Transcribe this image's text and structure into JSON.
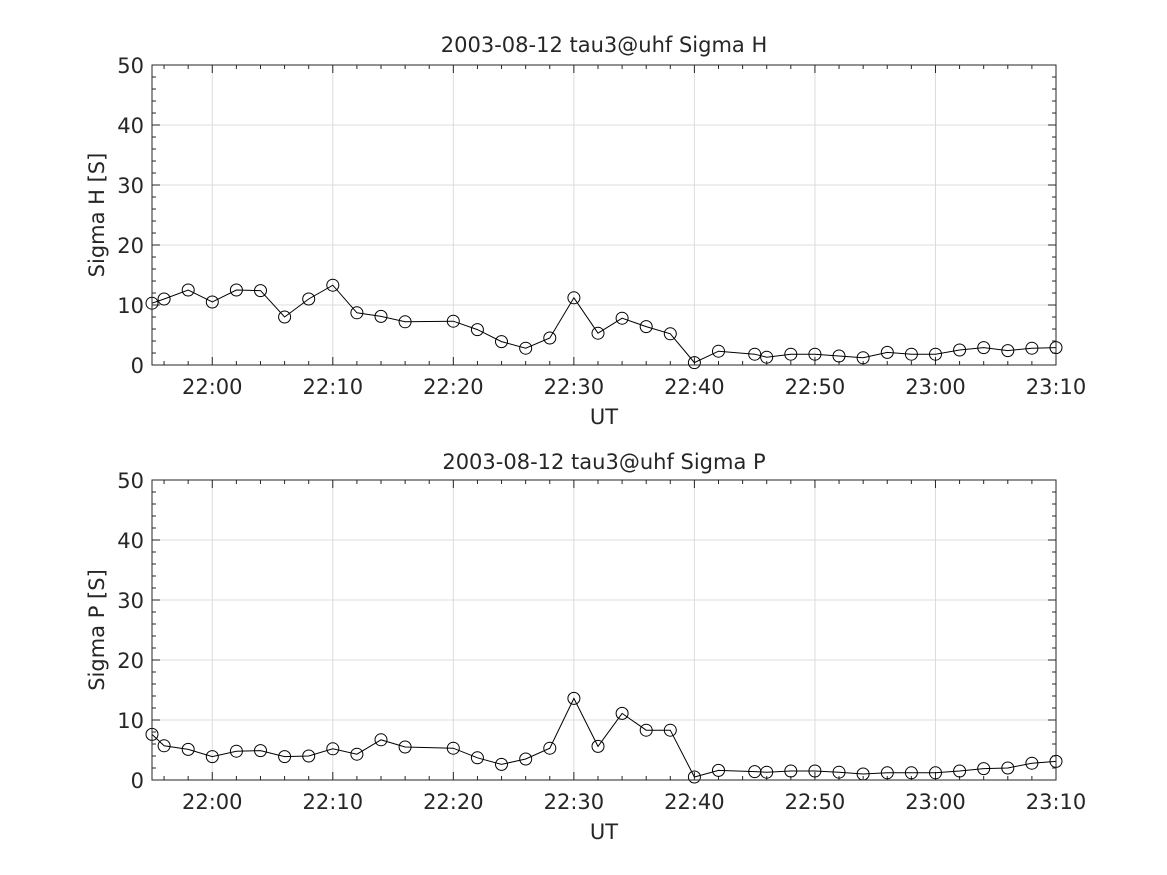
{
  "chart_data": [
    {
      "type": "line",
      "title": "2003-08-12  tau3@uhf Sigma H",
      "xlabel": "UT",
      "ylabel": "Sigma H [S]",
      "ylim": [
        0,
        50
      ],
      "xlim": [
        "21:55",
        "23:10"
      ],
      "yticks": [
        "0",
        "10",
        "20",
        "30",
        "40",
        "50"
      ],
      "xticks": [
        "22:00",
        "22:10",
        "22:20",
        "22:30",
        "22:40",
        "22:50",
        "23:00",
        "23:10"
      ],
      "grid": true,
      "marker": "open-circle",
      "line_color": "#000000",
      "series": [
        {
          "x": [
            "21:55",
            "21:56",
            "21:58",
            "22:00",
            "22:02",
            "22:04",
            "22:06",
            "22:08",
            "22:10",
            "22:12",
            "22:14",
            "22:16",
            "22:20",
            "22:22",
            "22:24",
            "22:26",
            "22:28",
            "22:30",
            "22:32",
            "22:34",
            "22:36",
            "22:38",
            "22:40",
            "22:42",
            "22:45",
            "22:46",
            "22:48",
            "22:50",
            "22:52",
            "22:54",
            "22:56",
            "22:58",
            "23:00",
            "23:02",
            "23:04",
            "23:06",
            "23:08",
            "23:10"
          ],
          "values": [
            10.3,
            11.0,
            12.5,
            10.5,
            12.5,
            12.4,
            8.0,
            11.0,
            13.3,
            8.7,
            8.1,
            7.2,
            7.3,
            5.9,
            3.9,
            2.8,
            4.5,
            11.2,
            5.3,
            7.8,
            6.4,
            5.2,
            0.4,
            2.3,
            1.8,
            1.3,
            1.8,
            1.8,
            1.5,
            1.2,
            2.1,
            1.8,
            1.8,
            2.5,
            2.9,
            2.4,
            2.8,
            2.9
          ]
        }
      ]
    },
    {
      "type": "line",
      "title": "2003-08-12  tau3@uhf Sigma P",
      "xlabel": "UT",
      "ylabel": "Sigma P [S]",
      "ylim": [
        0,
        50
      ],
      "xlim": [
        "21:55",
        "23:10"
      ],
      "yticks": [
        "0",
        "10",
        "20",
        "30",
        "40",
        "50"
      ],
      "xticks": [
        "22:00",
        "22:10",
        "22:20",
        "22:30",
        "22:40",
        "22:50",
        "23:00",
        "23:10"
      ],
      "grid": true,
      "marker": "open-circle",
      "line_color": "#000000",
      "series": [
        {
          "x": [
            "21:55",
            "21:56",
            "21:58",
            "22:00",
            "22:02",
            "22:04",
            "22:06",
            "22:08",
            "22:10",
            "22:12",
            "22:14",
            "22:16",
            "22:20",
            "22:22",
            "22:24",
            "22:26",
            "22:28",
            "22:30",
            "22:32",
            "22:34",
            "22:36",
            "22:38",
            "22:40",
            "22:42",
            "22:45",
            "22:46",
            "22:48",
            "22:50",
            "22:52",
            "22:54",
            "22:56",
            "22:58",
            "23:00",
            "23:02",
            "23:04",
            "23:06",
            "23:08",
            "23:10"
          ],
          "values": [
            7.6,
            5.7,
            5.1,
            3.9,
            4.8,
            4.9,
            3.9,
            4.0,
            5.2,
            4.3,
            6.7,
            5.5,
            5.3,
            3.7,
            2.6,
            3.5,
            5.3,
            13.6,
            5.6,
            11.1,
            8.3,
            8.3,
            0.5,
            1.6,
            1.4,
            1.3,
            1.5,
            1.5,
            1.3,
            1.0,
            1.2,
            1.2,
            1.2,
            1.5,
            1.9,
            2.0,
            2.8,
            3.1
          ]
        }
      ]
    }
  ]
}
